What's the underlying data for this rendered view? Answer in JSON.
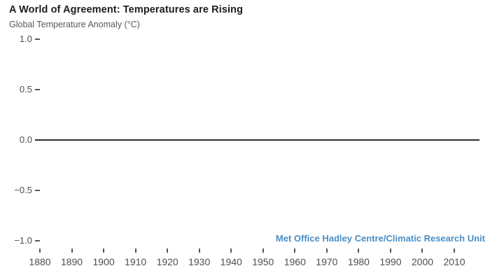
{
  "header": {
    "title": "A World of Agreement: Temperatures are Rising",
    "subtitle": "Global Temperature Anomaly (°C)"
  },
  "chart_data": {
    "type": "line",
    "title": "A World of Agreement: Temperatures are Rising",
    "ylabel": "Global Temperature Anomaly (°C)",
    "xlabel": "",
    "y_tick_labels": [
      "1.0",
      "0.5",
      "0.0",
      "−0.5",
      "−1.0"
    ],
    "y_tick_values": [
      1.0,
      0.5,
      0.0,
      -0.5,
      -1.0
    ],
    "ylim": [
      -1.0,
      1.0
    ],
    "x_tick_labels": [
      "1880",
      "1890",
      "1900",
      "1910",
      "1920",
      "1930",
      "1940",
      "1950",
      "1960",
      "1970",
      "1980",
      "1990",
      "2000",
      "2010"
    ],
    "xlim": [
      1878,
      2018
    ],
    "series": [],
    "baseline": {
      "value": 0.0,
      "drawn": true
    },
    "grid": false,
    "legend": null,
    "annotation": "Met Office Hadley Centre/Climatic Research Unit"
  },
  "credit": {
    "label": "Met Office Hadley Centre/Climatic Research Unit"
  },
  "colors": {
    "background": "#ffffff",
    "title_text": "#1c1c1e",
    "subtitle_text": "#57585a",
    "axis_text": "#4d4e50",
    "tick_mark": "#555658",
    "baseline": "#2d2d2f",
    "credit_blue": "#4a8ec6"
  }
}
